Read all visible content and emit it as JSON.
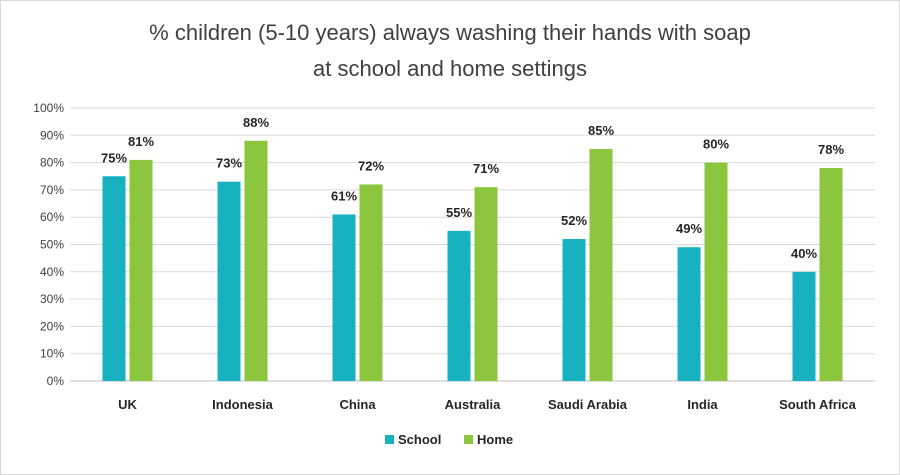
{
  "chart_data": {
    "type": "bar",
    "title_line1": "% children (5-10 years) always washing their hands with soap",
    "title_line2": "at school and home settings",
    "categories": [
      "UK",
      "Indonesia",
      "China",
      "Australia",
      "Saudi Arabia",
      "India",
      "South Africa"
    ],
    "series": [
      {
        "name": "School",
        "color": "#17b1c0",
        "values": [
          75,
          73,
          61,
          55,
          52,
          49,
          40
        ]
      },
      {
        "name": "Home",
        "color": "#8cc63f",
        "values": [
          81,
          88,
          72,
          71,
          85,
          80,
          78
        ]
      }
    ],
    "ylim": [
      0,
      100
    ],
    "yticks": [
      "0%",
      "10%",
      "20%",
      "30%",
      "40%",
      "50%",
      "60%",
      "70%",
      "80%",
      "90%",
      "100%"
    ],
    "value_suffix": "%",
    "grid": true,
    "legend_position": "bottom"
  }
}
